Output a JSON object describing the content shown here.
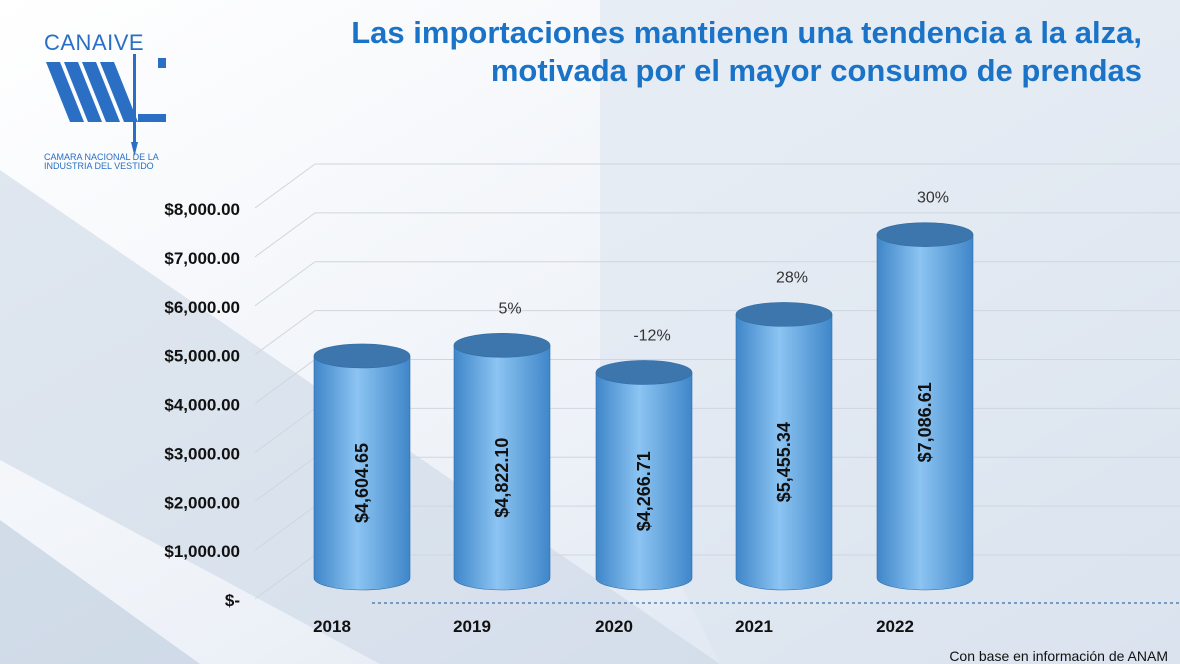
{
  "title": "Las importaciones mantienen una tendencia a la alza, motivada por el mayor consumo de prendas",
  "logo": {
    "name": "CANAIVE",
    "subtitle": "CÁMARA NACIONAL DE LA INDUSTRIA DEL VESTIDO"
  },
  "source": "Con base en información de ANAM",
  "colors": {
    "title": "#1a73c6",
    "bar_light": "#8cc4f2",
    "bar_dark": "#3f86c9",
    "bar_top": "#3c76ad",
    "axis_text": "#111111"
  },
  "chart_data": {
    "type": "bar",
    "title": "Las importaciones mantienen una tendencia a la alza, motivada por el mayor consumo de prendas",
    "categories": [
      "2018",
      "2019",
      "2020",
      "2021",
      "2022"
    ],
    "values": [
      4604.65,
      4822.1,
      4266.71,
      5455.34,
      7086.61
    ],
    "value_labels": [
      "$4,604.65",
      "$4,822.10",
      "$4,266.71",
      "$5,455.34",
      "$7,086.61"
    ],
    "growth_labels": [
      "",
      "5%",
      "-12%",
      "28%",
      "30%"
    ],
    "ylim": [
      0,
      8000
    ],
    "yticks": [
      0,
      1000,
      2000,
      3000,
      4000,
      5000,
      6000,
      7000,
      8000
    ],
    "ytick_labels": [
      "$-",
      "$1,000.00",
      "$2,000.00",
      "$3,000.00",
      "$4,000.00",
      "$5,000.00",
      "$6,000.00",
      "$7,000.00",
      "$8,000.00"
    ],
    "xlabel": "",
    "ylabel": "",
    "grid": true,
    "legend": "none"
  }
}
